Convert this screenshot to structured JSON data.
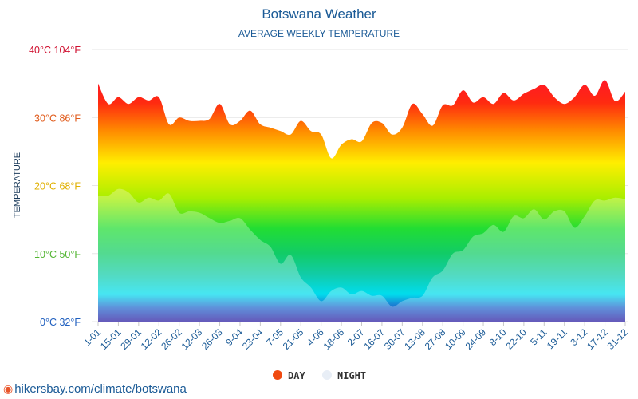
{
  "chart_data": {
    "type": "area",
    "title": "Botswana Weather",
    "subtitle": "AVERAGE WEEKLY TEMPERATURE",
    "ylabel": "TEMPERATURE",
    "ylim": [
      0,
      40
    ],
    "yticks": [
      {
        "value": 0,
        "label": "0°C 32°F",
        "color": "#1f5fbf"
      },
      {
        "value": 10,
        "label": "10°C 50°F",
        "color": "#52b532"
      },
      {
        "value": 20,
        "label": "20°C 68°F",
        "color": "#e0b000"
      },
      {
        "value": 30,
        "label": "30°C 86°F",
        "color": "#e05a1a"
      },
      {
        "value": 40,
        "label": "40°C 104°F",
        "color": "#d01030"
      }
    ],
    "xticks": [
      "1-01",
      "15-01",
      "29-01",
      "12-02",
      "26-02",
      "12-03",
      "26-03",
      "9-04",
      "23-04",
      "7-05",
      "21-05",
      "4-06",
      "18-06",
      "2-07",
      "16-07",
      "30-07",
      "13-08",
      "27-08",
      "10-09",
      "24-09",
      "8-10",
      "22-10",
      "5-11",
      "19-11",
      "3-12",
      "17-12",
      "31-12"
    ],
    "series": [
      {
        "name": "DAY",
        "color": "#f04a10",
        "values": [
          35,
          32,
          33,
          32,
          33,
          32.5,
          33,
          29,
          30,
          29.5,
          29.5,
          29.8,
          32,
          29,
          29.5,
          31,
          29,
          28.5,
          28,
          27.5,
          29.5,
          28,
          27.5,
          24,
          26,
          26.8,
          26.5,
          29.2,
          29.2,
          27.5,
          28.5,
          32,
          30.5,
          28.8,
          31.8,
          31.8,
          34,
          32.2,
          33,
          32,
          33.6,
          32.5,
          33.5,
          34.2,
          34.8,
          33,
          32,
          33,
          34.8,
          33.2,
          35.5,
          32.4,
          33.8
        ]
      },
      {
        "name": "NIGHT",
        "color": "#e8eef6",
        "values": [
          18.5,
          18.5,
          19.5,
          19,
          17.5,
          18.2,
          17.8,
          18.8,
          16,
          16.2,
          16,
          15.2,
          14.5,
          14.8,
          15.2,
          13.5,
          12,
          11,
          8.5,
          9.8,
          6.5,
          5,
          3,
          4.5,
          5,
          4,
          4.5,
          3.8,
          3.8,
          2.2,
          3,
          3.5,
          3.8,
          6.5,
          7.5,
          10,
          10.5,
          12.5,
          13,
          14.2,
          13.2,
          15.5,
          15.2,
          16.5,
          15,
          16.2,
          16.2,
          13.8,
          15.5,
          17.8,
          17.8,
          18.2,
          18
        ]
      }
    ],
    "legend": "bottom-center",
    "grid": true
  },
  "footer": {
    "text": "hikersbay.com/climate/botswana"
  }
}
